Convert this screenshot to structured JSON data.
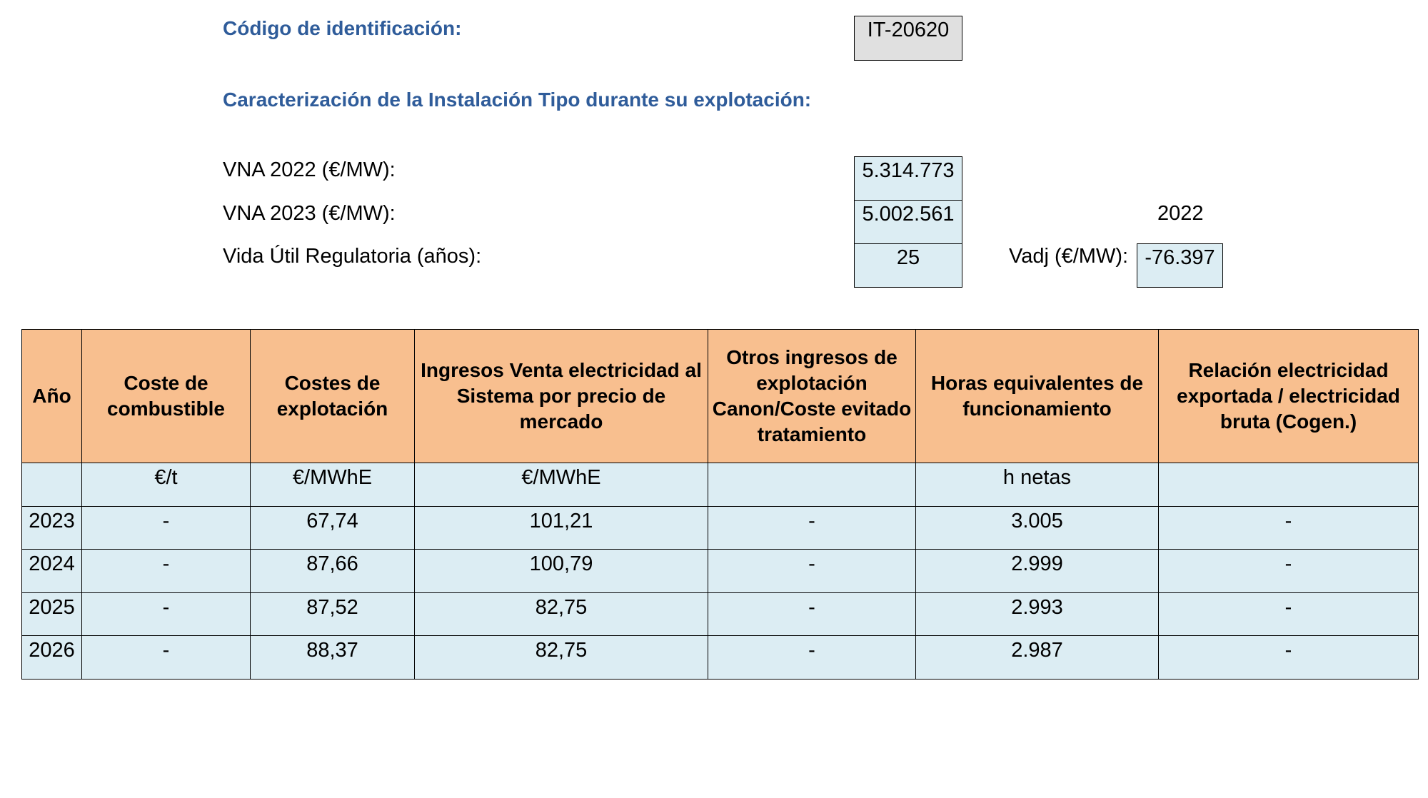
{
  "header": {
    "code_label": "Código de identificación:",
    "code_value": "IT-20620",
    "section_title": "Caracterización de la Instalación Tipo durante su explotación:"
  },
  "params": {
    "vna2022_label": "VNA 2022 (€/MW):",
    "vna2022_value": "5.314.773",
    "vna2023_label": "VNA 2023 (€/MW):",
    "vna2023_value": "5.002.561",
    "vida_label": "Vida Útil Regulatoria (años):",
    "vida_value": "25",
    "year_label": "2022",
    "vadj_label": "Vadj (€/MW):",
    "vadj_value": "-76.397"
  },
  "table": {
    "headers": [
      "Año",
      "Coste de combustible",
      "Costes de explotación",
      "Ingresos Venta electricidad al Sistema por precio de mercado",
      "Otros ingresos de explotación Canon/Coste evitado tratamiento",
      "Horas equivalentes de funcionamiento",
      "Relación electricidad exportada / electricidad bruta (Cogen.)"
    ],
    "units": [
      "",
      "€/t",
      "€/MWhE",
      "€/MWhE",
      "",
      "h netas",
      ""
    ],
    "rows": [
      [
        "2023",
        "-",
        "67,74",
        "101,21",
        "-",
        "3.005",
        "-"
      ],
      [
        "2024",
        "-",
        "87,66",
        "100,79",
        "-",
        "2.999",
        "-"
      ],
      [
        "2025",
        "-",
        "87,52",
        "82,75",
        "-",
        "2.993",
        "-"
      ],
      [
        "2026",
        "-",
        "88,37",
        "82,75",
        "-",
        "2.987",
        "-"
      ]
    ]
  }
}
